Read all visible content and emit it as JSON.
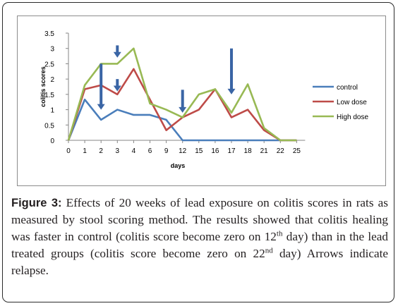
{
  "chart_data": {
    "type": "line",
    "categories": [
      "0",
      "1",
      "2",
      "3",
      "4",
      "6",
      "9",
      "12",
      "15",
      "16",
      "17",
      "18",
      "21",
      "22",
      "25"
    ],
    "xlabel": "days",
    "ylabel": "colitis scores",
    "ylim": [
      0,
      3.5
    ],
    "yticks": [
      "0",
      "0.5",
      "1",
      "1.5",
      "2",
      "2.5",
      "3",
      "3.5"
    ],
    "grid": false,
    "legend_position": "right",
    "series": [
      {
        "name": "control",
        "color": "#4a7ebb",
        "values": [
          0,
          1.33,
          0.67,
          1.0,
          0.83,
          0.83,
          0.67,
          0,
          0,
          0,
          0,
          0,
          0,
          0,
          0
        ]
      },
      {
        "name": "Low dose",
        "color": "#be4b48",
        "values": [
          0,
          1.67,
          1.8,
          1.5,
          2.33,
          1.33,
          0.33,
          0.75,
          1.0,
          1.67,
          0.75,
          1.0,
          0.33,
          0,
          0
        ]
      },
      {
        "name": "High dose",
        "color": "#98b954",
        "values": [
          0,
          1.8,
          2.5,
          2.5,
          3.0,
          1.2,
          1.0,
          0.75,
          1.5,
          1.67,
          0.9,
          1.83,
          0.4,
          0,
          0
        ]
      }
    ],
    "annotations": [
      {
        "type": "arrow",
        "label": "relapse",
        "x_category": "2",
        "y_from": 2.5,
        "y_to": 1.0
      },
      {
        "type": "arrow",
        "label": "relapse",
        "x_category": "3",
        "y_from": 3.1,
        "y_to": 2.7
      },
      {
        "type": "arrow",
        "label": "relapse",
        "x_category": "3",
        "y_from": 2.0,
        "y_to": 1.6
      },
      {
        "type": "arrow",
        "label": "relapse",
        "x_category": "12",
        "y_from": 1.65,
        "y_to": 0.9
      },
      {
        "type": "arrow",
        "label": "relapse",
        "x_category": "17",
        "y_from": 3.0,
        "y_to": 1.5
      }
    ]
  },
  "caption": {
    "label": "Figure 3:",
    "text_1": " Effects of 20 weeks of lead exposure on colitis scores in rats as measured by stool scoring method. The results showed that colitis healing was faster in control (colitis score become zero on 12",
    "sup_1": "th",
    "text_2": " day) than in the lead treated groups (colitis score become zero on 22",
    "sup_2": "nd",
    "text_3": " day) Arrows indicate relapse."
  }
}
